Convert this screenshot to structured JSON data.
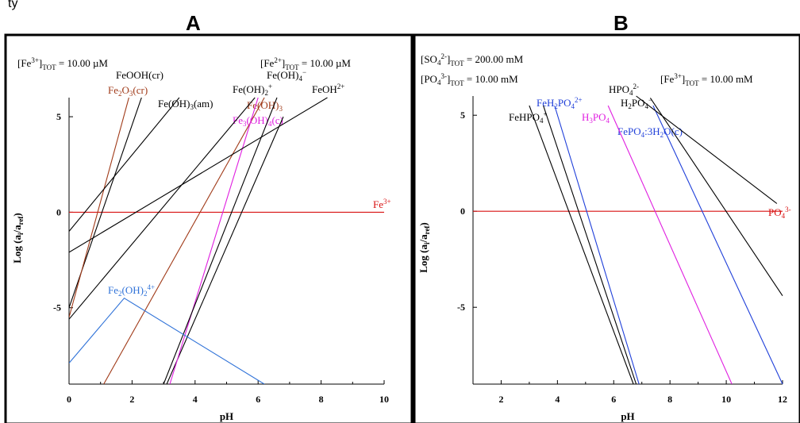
{
  "page": {
    "caption": "ty",
    "panel_a_label": "A",
    "panel_b_label": "B"
  },
  "colors": {
    "black": "#000000",
    "red": "#d81010",
    "blue": "#1f3fd9",
    "magenta": "#e01ee0",
    "brown": "#a03a18",
    "lightblue": "#2f72d8"
  },
  "chart_data": [
    {
      "type": "line",
      "panel": "A",
      "xlabel": "pH",
      "ylabel": "Log (a_i/a_ref)",
      "xlim": [
        0,
        10
      ],
      "ylim": [
        -9,
        6
      ],
      "xticks": [
        0,
        2,
        4,
        6,
        8,
        10
      ],
      "yticks": [
        5,
        0,
        -5
      ],
      "annotations": [
        {
          "text": "[Fe3+]TOT = 10.00 µM"
        },
        {
          "text": "[Fe2+]TOT = 10.00 µM"
        }
      ],
      "series": [
        {
          "name": "Fe3+",
          "color": "#d81010",
          "labelAt": [
            9.5,
            0.6
          ],
          "points": [
            [
              0,
              0
            ],
            [
              10,
              0
            ]
          ]
        },
        {
          "name": "FeOOH(cr)",
          "color": "#000000",
          "labelAt": [
            1.45,
            7.0
          ],
          "points": [
            [
              0,
              -5.0
            ],
            [
              2.3,
              6.0
            ]
          ]
        },
        {
          "name": "Fe2O3(cr)",
          "color": "#a03a18",
          "labelAt": [
            1.2,
            6.2
          ],
          "points": [
            [
              0,
              -5.5
            ],
            [
              1.9,
              6.0
            ]
          ]
        },
        {
          "name": "Fe(OH)3(am)",
          "color": "#000000",
          "labelAt": [
            2.8,
            5.5
          ],
          "points": [
            [
              0,
              -1.0
            ],
            [
              3.5,
              6.0
            ]
          ]
        },
        {
          "name": "Fe(OH)2+",
          "color": "#000000",
          "labelAt": [
            5.2,
            6.3
          ],
          "points": [
            [
              0,
              -5.6
            ],
            [
              5.9,
              6.0
            ]
          ]
        },
        {
          "name": "Fe(OH)4-",
          "color": "#000000",
          "labelAt": [
            6.2,
            6.9
          ],
          "points": [
            [
              3.1,
              -9.0
            ],
            [
              6.8,
              5.0
            ]
          ]
        },
        {
          "name": "Fe(OH)3",
          "color": "#a03a18",
          "labelAt": [
            5.6,
            5.4
          ],
          "points": [
            [
              1.1,
              -9.0
            ],
            [
              6.2,
              6.0
            ]
          ]
        },
        {
          "name": "Fe3(OH)4(c)",
          "color": "#e01ee0",
          "labelAt": [
            5.2,
            4.6
          ],
          "points": [
            [
              3.2,
              -9.0
            ],
            [
              6.0,
              6.0
            ]
          ]
        },
        {
          "name": "FeOH2+",
          "color": "#000000",
          "labelAt": [
            7.6,
            6.4
          ],
          "points": [
            [
              0,
              -2.1
            ],
            [
              8.2,
              6.0
            ]
          ]
        },
        {
          "name": "",
          "color": "#000000",
          "labelAt": null,
          "points": [
            [
              3.0,
              -9.0
            ],
            [
              6.6,
              6.0
            ]
          ]
        },
        {
          "name": "Fe2(OH)24+",
          "color": "#2f72d8",
          "labelAt": [
            1.2,
            -4.0
          ],
          "points": [
            [
              0,
              -7.9
            ],
            [
              1.75,
              -4.5
            ],
            [
              6.2,
              -9.0
            ]
          ]
        }
      ]
    },
    {
      "type": "line",
      "panel": "B",
      "xlabel": "pH",
      "ylabel": "Log (a_i/a_ref)",
      "xlim": [
        1,
        12
      ],
      "ylim": [
        -9,
        6
      ],
      "xticks": [
        2,
        4,
        6,
        8,
        10,
        12
      ],
      "yticks": [
        5,
        0,
        -5
      ],
      "annotations": [
        {
          "text": "[SO42-]TOT = 200.00 mM"
        },
        {
          "text": "[PO43-]TOT = 10.00 mM"
        },
        {
          "text": "[Fe3+]TOT = 10.00 mM"
        }
      ],
      "series": [
        {
          "name": "PO43-",
          "color": "#d81010",
          "labelAt": [
            11.5,
            0.5
          ],
          "points": [
            [
              1,
              0
            ],
            [
              12,
              0
            ]
          ]
        },
        {
          "name": "FeHPO4+",
          "color": "#000000",
          "labelAt": [
            2.3,
            5.2
          ],
          "points": [
            [
              3.0,
              5.5
            ],
            [
              6.7,
              -9.0
            ]
          ]
        },
        {
          "name": "FeH2PO42+",
          "color": "#1f3fd9",
          "labelAt": [
            3.3,
            5.9
          ],
          "points": [
            [
              3.9,
              5.5
            ],
            [
              6.9,
              -9.0
            ]
          ]
        },
        {
          "name": "",
          "color": "#000000",
          "labelAt": null,
          "points": [
            [
              3.5,
              5.5
            ],
            [
              6.8,
              -9.0
            ]
          ]
        },
        {
          "name": "H3PO4",
          "color": "#e01ee0",
          "labelAt": [
            5.2,
            5.2
          ],
          "points": [
            [
              5.8,
              5.5
            ],
            [
              10.2,
              -9.0
            ]
          ]
        },
        {
          "name": "FePO4:3H2O(c)",
          "color": "#1f3fd9",
          "labelAt": [
            6.5,
            4.6
          ],
          "points": [
            [
              7.4,
              5.5
            ],
            [
              12.0,
              -9.0
            ]
          ]
        },
        {
          "name": "HPO42-",
          "color": "#000000",
          "labelAt": [
            6.8,
            6.8
          ],
          "points": [
            [
              6.8,
              6.0
            ],
            [
              11.8,
              0.4
            ]
          ]
        },
        {
          "name": "H2PO4-",
          "color": "#000000",
          "labelAt": [
            7.1,
            6.1
          ],
          "points": [
            [
              7.3,
              5.9
            ],
            [
              12.0,
              -4.4
            ]
          ]
        }
      ]
    }
  ]
}
